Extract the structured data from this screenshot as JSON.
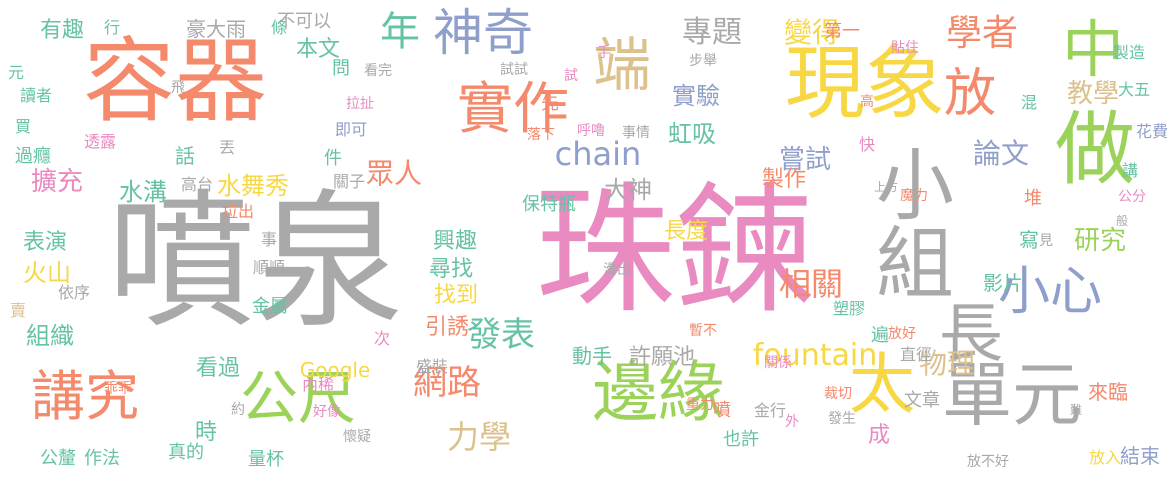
{
  "palette": {
    "gray": "#a9a9a9",
    "orange": "#f5896b",
    "pink": "#e98ac1",
    "green": "#9bd35a",
    "yellow": "#f7d844",
    "blue": "#8f9fcb",
    "teal": "#66c2a5",
    "tan": "#ddc18c"
  },
  "words": [
    {
      "text": "噴泉",
      "color": "gray",
      "orient": "h"
    },
    {
      "text": "珠鍊",
      "color": "pink",
      "orient": "h"
    },
    {
      "text": "容器",
      "color": "orange",
      "orient": "h"
    },
    {
      "text": "現象",
      "color": "yellow",
      "orient": "h"
    },
    {
      "text": "邊緣",
      "color": "green",
      "orient": "h"
    },
    {
      "text": "做",
      "color": "green",
      "orient": "h"
    },
    {
      "text": "單元",
      "color": "gray",
      "orient": "h"
    },
    {
      "text": "中",
      "color": "green",
      "orient": "h"
    },
    {
      "text": "實作",
      "color": "orange",
      "orient": "h"
    },
    {
      "text": "神奇",
      "color": "blue",
      "orient": "h"
    },
    {
      "text": "小組",
      "color": "gray",
      "orient": "v"
    },
    {
      "text": "端",
      "color": "tan",
      "orient": "h"
    },
    {
      "text": "長",
      "color": "gray",
      "orient": "h"
    },
    {
      "text": "放",
      "color": "orange",
      "orient": "h"
    },
    {
      "text": "公尺",
      "color": "green",
      "orient": "h"
    },
    {
      "text": "講究",
      "color": "orange",
      "orient": "h"
    },
    {
      "text": "小心",
      "color": "blue",
      "orient": "h"
    },
    {
      "text": "太",
      "color": "yellow",
      "orient": "h"
    },
    {
      "text": "年",
      "color": "teal",
      "orient": "h"
    },
    {
      "text": "學者",
      "color": "orange",
      "orient": "h"
    },
    {
      "text": "專題",
      "color": "gray",
      "orient": "h"
    },
    {
      "text": "變得",
      "color": "yellow",
      "orient": "h"
    },
    {
      "text": "chain",
      "color": "blue",
      "orient": "h"
    },
    {
      "text": "fountain",
      "color": "yellow",
      "orient": "h"
    },
    {
      "text": "發表",
      "color": "teal",
      "orient": "h"
    },
    {
      "text": "網路",
      "color": "orange",
      "orient": "h"
    },
    {
      "text": "力學",
      "color": "tan",
      "orient": "h"
    },
    {
      "text": "相關",
      "color": "orange",
      "orient": "h"
    },
    {
      "text": "物理",
      "color": "tan",
      "orient": "h"
    },
    {
      "text": "論文",
      "color": "blue",
      "orient": "h"
    },
    {
      "text": "教學",
      "color": "tan",
      "orient": "h"
    },
    {
      "text": "研究",
      "color": "green",
      "orient": "h"
    },
    {
      "text": "嘗試",
      "color": "blue",
      "orient": "h"
    },
    {
      "text": "實驗",
      "color": "blue",
      "orient": "h"
    },
    {
      "text": "虹吸",
      "color": "teal",
      "orient": "h"
    },
    {
      "text": "眾人",
      "color": "orange",
      "orient": "h"
    },
    {
      "text": "擴充",
      "color": "pink",
      "orient": "h"
    },
    {
      "text": "水溝",
      "color": "teal",
      "orient": "h"
    },
    {
      "text": "水舞秀",
      "color": "yellow",
      "orient": "h"
    },
    {
      "text": "有趣",
      "color": "teal",
      "orient": "h"
    },
    {
      "text": "豪大雨",
      "color": "gray",
      "orient": "h"
    },
    {
      "text": "不可以",
      "color": "gray",
      "orient": "h"
    },
    {
      "text": "本文",
      "color": "teal",
      "orient": "h"
    },
    {
      "text": "大神",
      "color": "gray",
      "orient": "h"
    },
    {
      "text": "製作",
      "color": "orange",
      "orient": "h"
    },
    {
      "text": "興趣",
      "color": "teal",
      "orient": "h"
    },
    {
      "text": "長度",
      "color": "yellow",
      "orient": "h"
    },
    {
      "text": "尋找",
      "color": "teal",
      "orient": "h"
    },
    {
      "text": "找到",
      "color": "yellow",
      "orient": "h"
    },
    {
      "text": "引誘",
      "color": "orange",
      "orient": "h"
    },
    {
      "text": "許願池",
      "color": "gray",
      "orient": "h"
    },
    {
      "text": "動手",
      "color": "teal",
      "orient": "h"
    },
    {
      "text": "組織",
      "color": "teal",
      "orient": "h"
    },
    {
      "text": "看過",
      "color": "teal",
      "orient": "h"
    },
    {
      "text": "Google",
      "color": "yellow",
      "orient": "h"
    },
    {
      "text": "表演",
      "color": "teal",
      "orient": "h"
    },
    {
      "text": "火山",
      "color": "yellow",
      "orient": "h"
    },
    {
      "text": "影片",
      "color": "teal",
      "orient": "h"
    },
    {
      "text": "寫",
      "color": "teal",
      "orient": "h"
    },
    {
      "text": "堆",
      "color": "orange",
      "orient": "h"
    },
    {
      "text": "成",
      "color": "pink",
      "orient": "h"
    },
    {
      "text": "文章",
      "color": "gray",
      "orient": "h"
    },
    {
      "text": "來臨",
      "color": "orange",
      "orient": "h"
    },
    {
      "text": "結束",
      "color": "blue",
      "orient": "h"
    },
    {
      "text": "講",
      "color": "teal",
      "orient": "h"
    },
    {
      "text": "花費",
      "color": "blue",
      "orient": "h"
    },
    {
      "text": "混",
      "color": "teal",
      "orient": "h"
    },
    {
      "text": "大五",
      "color": "teal",
      "orient": "h"
    },
    {
      "text": "製造",
      "color": "teal",
      "orient": "h"
    },
    {
      "text": "第一",
      "color": "orange",
      "orient": "h"
    },
    {
      "text": "時",
      "color": "teal",
      "orient": "h"
    },
    {
      "text": "也許",
      "color": "teal",
      "orient": "h"
    },
    {
      "text": "噴",
      "color": "orange",
      "orient": "h"
    },
    {
      "text": "量杯",
      "color": "teal",
      "orient": "h"
    },
    {
      "text": "作法",
      "color": "teal",
      "orient": "h"
    },
    {
      "text": "真的",
      "color": "teal",
      "orient": "h"
    },
    {
      "text": "公釐",
      "color": "teal",
      "orient": "h"
    },
    {
      "text": "金屬",
      "color": "teal",
      "orient": "h"
    },
    {
      "text": "遍",
      "color": "teal",
      "orient": "h"
    },
    {
      "text": "直徑",
      "color": "gray",
      "orient": "h"
    },
    {
      "text": "過癮",
      "color": "teal",
      "orient": "h"
    },
    {
      "text": "話",
      "color": "teal",
      "orient": "h"
    },
    {
      "text": "件",
      "color": "teal",
      "orient": "h"
    },
    {
      "text": "問",
      "color": "teal",
      "orient": "h"
    },
    {
      "text": "即可",
      "color": "blue",
      "orient": "h"
    },
    {
      "text": "先",
      "color": "orange",
      "orient": "h"
    },
    {
      "text": "保特瓶",
      "color": "teal",
      "orient": "h"
    },
    {
      "text": "盛裝",
      "color": "gray",
      "orient": "h"
    },
    {
      "text": "金行",
      "color": "gray",
      "orient": "h"
    },
    {
      "text": "塑膠",
      "color": "teal",
      "orient": "h"
    },
    {
      "text": "放入",
      "color": "yellow",
      "orient": "h"
    },
    {
      "text": "條",
      "color": "teal",
      "orient": "h"
    },
    {
      "text": "行",
      "color": "teal",
      "orient": "h"
    },
    {
      "text": "元",
      "color": "teal",
      "orient": "h"
    },
    {
      "text": "讀者",
      "color": "teal",
      "orient": "h"
    },
    {
      "text": "買",
      "color": "teal",
      "orient": "h"
    },
    {
      "text": "透露",
      "color": "pink",
      "orient": "h"
    },
    {
      "text": "丟",
      "color": "gray",
      "orient": "h"
    },
    {
      "text": "高台",
      "color": "gray",
      "orient": "h"
    },
    {
      "text": "關子",
      "color": "gray",
      "orient": "h"
    },
    {
      "text": "拉出",
      "color": "orange",
      "orient": "h"
    },
    {
      "text": "事",
      "color": "gray",
      "orient": "h"
    },
    {
      "text": "順順",
      "color": "gray",
      "orient": "h"
    },
    {
      "text": "依序",
      "color": "gray",
      "orient": "h"
    },
    {
      "text": "賣",
      "color": "tan",
      "orient": "h"
    },
    {
      "text": "次",
      "color": "pink",
      "orient": "h"
    },
    {
      "text": "內稀",
      "color": "pink",
      "orient": "h"
    },
    {
      "text": "乖乖",
      "color": "orange",
      "orient": "h"
    },
    {
      "text": "約",
      "color": "gray",
      "orient": "h"
    },
    {
      "text": "好像",
      "color": "pink",
      "orient": "h"
    },
    {
      "text": "懷疑",
      "color": "gray",
      "orient": "h"
    },
    {
      "text": "看完",
      "color": "gray",
      "orient": "h"
    },
    {
      "text": "拉扯",
      "color": "pink",
      "orient": "h"
    },
    {
      "text": "飛",
      "color": "gray",
      "orient": "h"
    },
    {
      "text": "試試",
      "color": "gray",
      "orient": "h"
    },
    {
      "text": "試",
      "color": "pink",
      "orient": "h"
    },
    {
      "text": "手",
      "color": "pink",
      "orient": "h"
    },
    {
      "text": "步舉",
      "color": "gray",
      "orient": "h"
    },
    {
      "text": "落下",
      "color": "orange",
      "orient": "h"
    },
    {
      "text": "呼嚕",
      "color": "pink",
      "orient": "h"
    },
    {
      "text": "事情",
      "color": "gray",
      "orient": "h"
    },
    {
      "text": "貼住",
      "color": "pink",
      "orient": "h"
    },
    {
      "text": "高",
      "color": "orange",
      "orient": "h"
    },
    {
      "text": "快",
      "color": "pink",
      "orient": "h"
    },
    {
      "text": "上方",
      "color": "gray",
      "orient": "h"
    },
    {
      "text": "魔力",
      "color": "orange",
      "orient": "h"
    },
    {
      "text": "公分",
      "color": "pink",
      "orient": "h"
    },
    {
      "text": "般",
      "color": "gray",
      "orient": "h"
    },
    {
      "text": "見",
      "color": "gray",
      "orient": "h"
    },
    {
      "text": "滑出",
      "color": "gray",
      "orient": "h"
    },
    {
      "text": "暫不",
      "color": "orange",
      "orient": "h"
    },
    {
      "text": "放好",
      "color": "orange",
      "orient": "h"
    },
    {
      "text": "關係",
      "color": "pink",
      "orient": "h"
    },
    {
      "text": "裁切",
      "color": "orange",
      "orient": "h"
    },
    {
      "text": "重力",
      "color": "orange",
      "orient": "h"
    },
    {
      "text": "外",
      "color": "pink",
      "orient": "h"
    },
    {
      "text": "發生",
      "color": "gray",
      "orient": "h"
    },
    {
      "text": "難",
      "color": "gray",
      "orient": "h"
    },
    {
      "text": "放不好",
      "color": "gray",
      "orient": "h"
    },
    {
      "text": "下文",
      "color": "gray",
      "orient": "h"
    }
  ]
}
